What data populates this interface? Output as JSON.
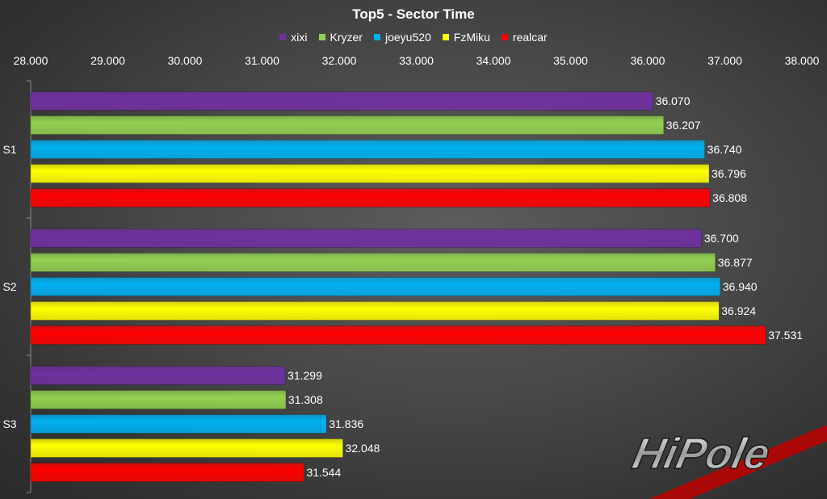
{
  "chart_data": {
    "type": "bar",
    "orientation": "horizontal",
    "title": "Top5 - Sector Time",
    "categories": [
      "S1",
      "S2",
      "S3"
    ],
    "series": [
      {
        "name": "xixi",
        "color": "#7030a0",
        "values": [
          36.07,
          36.7,
          31.299
        ],
        "labels": [
          "36.070",
          "36.700",
          "31.299"
        ]
      },
      {
        "name": "Kryzer",
        "color": "#92d050",
        "values": [
          36.207,
          36.877,
          31.308
        ],
        "labels": [
          "36.207",
          "36.877",
          "31.308"
        ]
      },
      {
        "name": "joeyu520",
        "color": "#00b0f0",
        "values": [
          36.74,
          36.94,
          31.836
        ],
        "labels": [
          "36.740",
          "36.940",
          "31.836"
        ]
      },
      {
        "name": "FzMiku",
        "color": "#ffff00",
        "values": [
          36.796,
          36.924,
          32.048
        ],
        "labels": [
          "36.796",
          "36.924",
          "32.048"
        ]
      },
      {
        "name": "realcar",
        "color": "#ff0000",
        "values": [
          36.808,
          37.531,
          31.544
        ],
        "labels": [
          "36.808",
          "37.531",
          "31.544"
        ]
      }
    ],
    "xlim": [
      28.0,
      38.0
    ],
    "x_ticks": [
      "28.000",
      "29.000",
      "30.000",
      "31.000",
      "32.000",
      "33.000",
      "34.000",
      "35.000",
      "36.000",
      "37.000",
      "38.000"
    ],
    "x_axis_position": "top",
    "legend_position": "top",
    "grid": false
  },
  "logo": {
    "text": "HiPole",
    "accent_color": "#c00000"
  }
}
